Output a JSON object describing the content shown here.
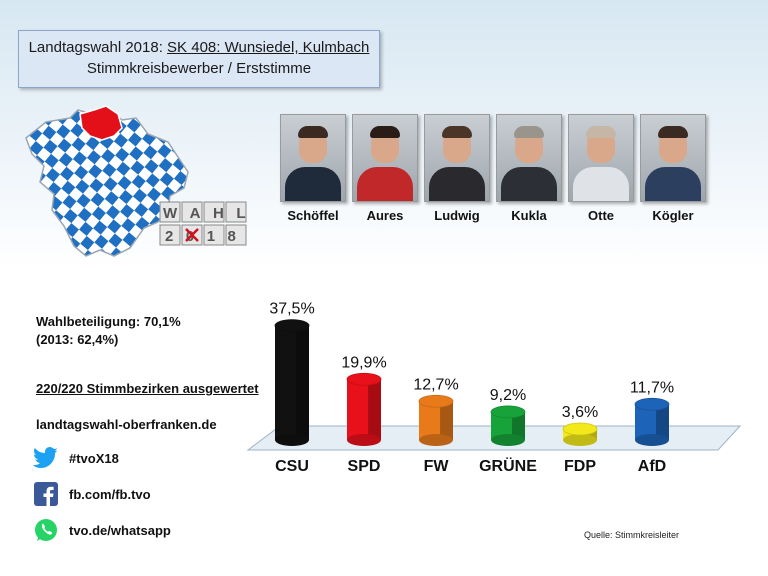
{
  "header": {
    "line1_prefix": "Landtagswahl 2018: ",
    "line1_link": "SK 408: Wunsiedel, Kulmbach",
    "line2": "Stimmkreisbewerber  / Erststimme"
  },
  "logo": {
    "word": "WAHL",
    "year": "2018"
  },
  "candidates": [
    {
      "name": "Schöffel",
      "hair": "#3a2a22",
      "suit": "#1f2a3a"
    },
    {
      "name": "Aures",
      "hair": "#2a1d18",
      "suit": "#c0282a"
    },
    {
      "name": "Ludwig",
      "hair": "#4a3526",
      "suit": "#2a2a2e"
    },
    {
      "name": "Kukla",
      "hair": "#9a958c",
      "suit": "#2c3036"
    },
    {
      "name": "Otte",
      "hair": "#c5b6a5",
      "suit": "#dfe3e8"
    },
    {
      "name": "Kögler",
      "hair": "#3a2a22",
      "suit": "#2d3f5e"
    }
  ],
  "info": {
    "turnout": "Wahlbeteiligung: 70,1%",
    "turnout_prev": "(2013: 62,4%)",
    "districts": "220/220 Stimmbezirken ausgewertet",
    "website": "landtagswahl-oberfranken.de"
  },
  "social": [
    {
      "icon": "twitter-icon",
      "label": "#tvoX18",
      "color": "#1da1f2"
    },
    {
      "icon": "facebook-icon",
      "label": "fb.com/fb.tvo",
      "color": "#3b5998"
    },
    {
      "icon": "whatsapp-icon",
      "label": "tvo.de/whatsapp",
      "color": "#25d366"
    }
  ],
  "source": "Quelle: Stimmkreisleiter",
  "chart_data": {
    "type": "bar",
    "categories": [
      "CSU",
      "SPD",
      "FW",
      "GRÜNE",
      "FDP",
      "AfD"
    ],
    "values": [
      37.5,
      19.9,
      12.7,
      9.2,
      3.6,
      11.7
    ],
    "value_labels": [
      "37,5%",
      "19,9%",
      "12,7%",
      "9,2%",
      "3,6%",
      "11,7%"
    ],
    "colors": [
      "#111111",
      "#e8101a",
      "#e87a1a",
      "#17a33a",
      "#f2e81a",
      "#1d63b8"
    ],
    "ylim": [
      0,
      40
    ],
    "grid": false
  }
}
